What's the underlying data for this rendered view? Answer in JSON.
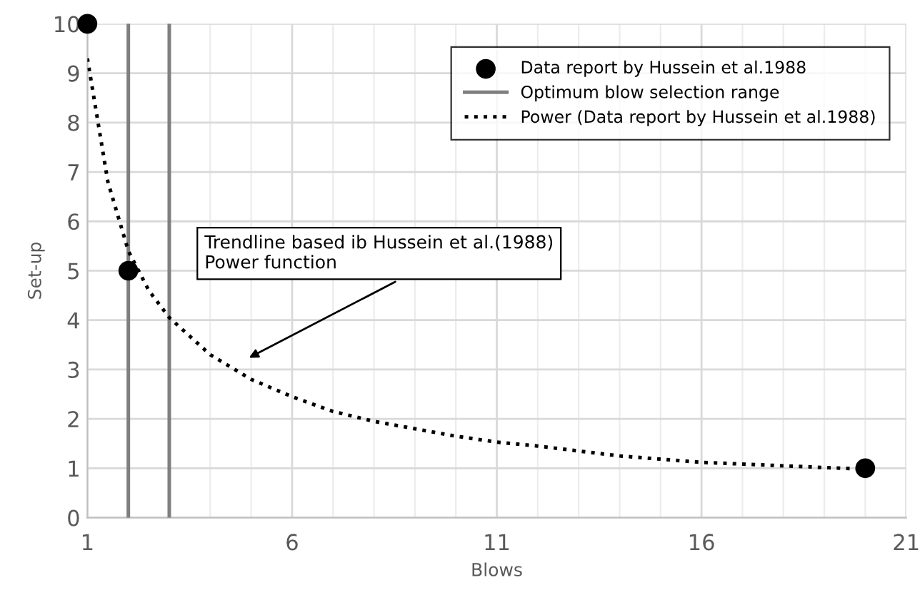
{
  "chart_data": {
    "type": "scatter",
    "xlabel": "Blows",
    "ylabel": "Set-up",
    "xlim": [
      1,
      21
    ],
    "xticks": [
      1,
      6,
      11,
      16,
      21
    ],
    "ylim": [
      0,
      10
    ],
    "yticks": [
      0,
      1,
      2,
      3,
      4,
      5,
      6,
      7,
      8,
      9,
      10
    ],
    "grid": true,
    "legend": "top right",
    "series": [
      {
        "name": "Data report by Hussein et al.1988",
        "marker": "circle",
        "color": "#000000",
        "x": [
          1,
          2,
          20
        ],
        "values": [
          10,
          5,
          1
        ]
      },
      {
        "name": "Optimum blow selection range",
        "type": "line",
        "line_style": "solid",
        "marker": "none",
        "color": "#7f7f7f",
        "x": [
          2,
          2,
          null,
          3,
          3
        ],
        "values": [
          0,
          10,
          null,
          0,
          10
        ]
      },
      {
        "name": "Power (Data report by Hussein et al.1988)",
        "type": "line",
        "line_style": "dotted",
        "marker": "none",
        "color": "#000000",
        "x": [
          1,
          1.5,
          2,
          2.5,
          3,
          4,
          5,
          6,
          7,
          8,
          9,
          10,
          11,
          12,
          14,
          16,
          18,
          20
        ],
        "values": [
          9.3,
          6.8,
          5.4,
          4.6,
          4.05,
          3.3,
          2.8,
          2.45,
          2.15,
          1.95,
          1.8,
          1.65,
          1.53,
          1.45,
          1.25,
          1.12,
          1.05,
          0.98
        ]
      }
    ],
    "annotations": [
      "Trendline based ib Hussein et al.(1988)\nPower function"
    ]
  }
}
